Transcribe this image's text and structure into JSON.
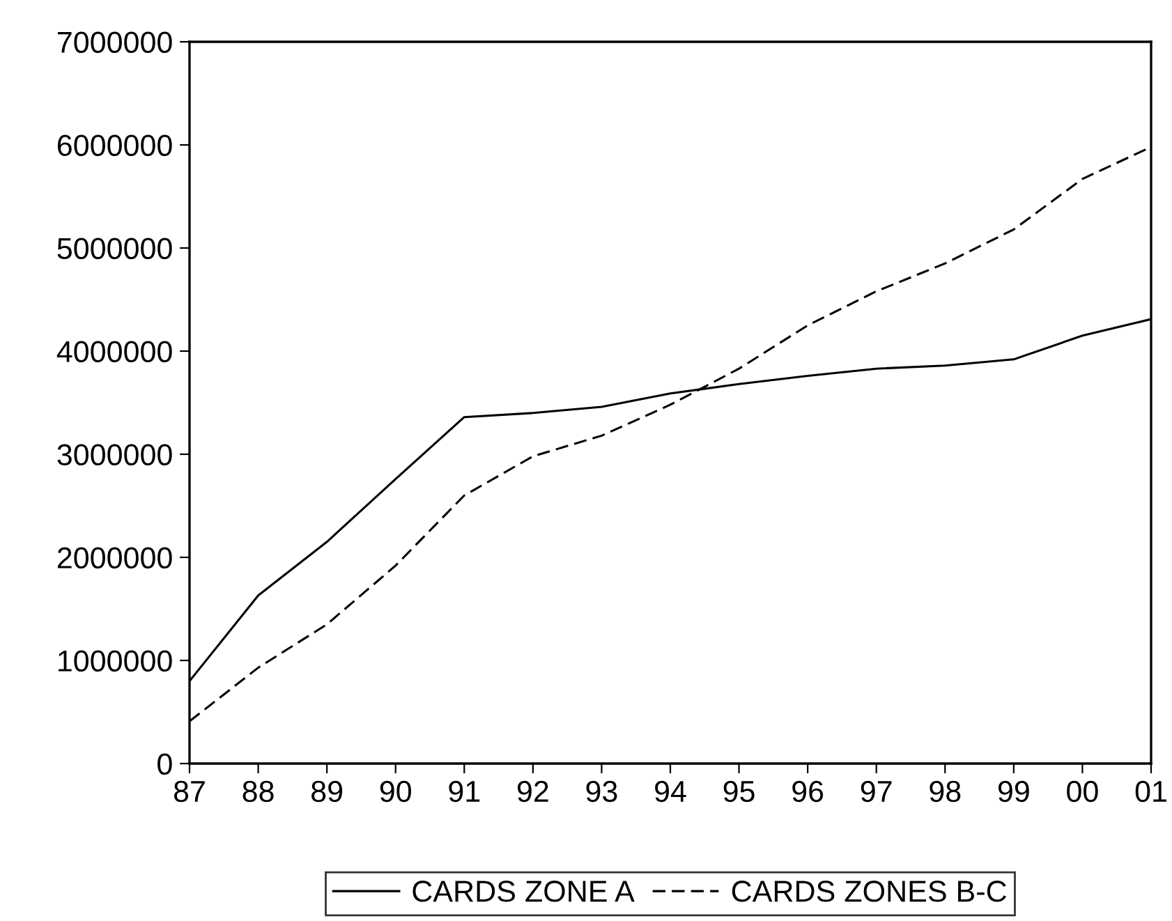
{
  "chart_data": {
    "type": "line",
    "categories": [
      "87",
      "88",
      "89",
      "90",
      "91",
      "92",
      "93",
      "94",
      "95",
      "96",
      "97",
      "98",
      "99",
      "00",
      "01"
    ],
    "series": [
      {
        "name": "CARDS ZONE A",
        "color": "#000000",
        "line_style": "solid",
        "values": [
          800000,
          1630000,
          2150000,
          2760000,
          3360000,
          3400000,
          3460000,
          3590000,
          3680000,
          3760000,
          3830000,
          3860000,
          3920000,
          4150000,
          4310000
        ]
      },
      {
        "name": "CARDS ZONES B-C",
        "color": "#000000",
        "line_style": "dashed",
        "values": [
          410000,
          930000,
          1350000,
          1920000,
          2600000,
          2980000,
          3180000,
          3480000,
          3830000,
          4250000,
          4580000,
          4850000,
          5180000,
          5670000,
          5980000
        ]
      }
    ],
    "ylim": [
      0,
      7000000
    ],
    "yticks": [
      0,
      1000000,
      2000000,
      3000000,
      4000000,
      5000000,
      6000000,
      7000000
    ],
    "grid": false,
    "legend": "bottom",
    "marker": "none"
  }
}
